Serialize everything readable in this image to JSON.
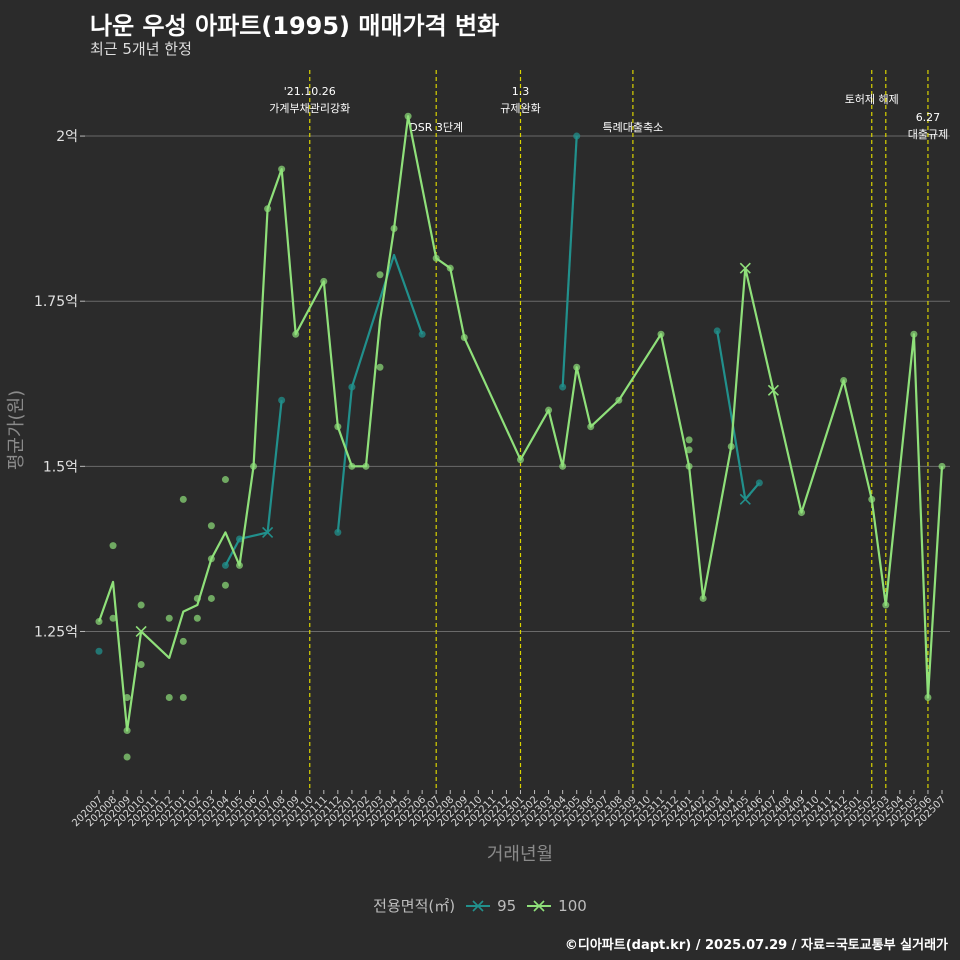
{
  "title": "나운 우성 아파트(1995) 매매가격 변화",
  "subtitle": "최근 5개년 한정",
  "caption": "©디아파트(dapt.kr) / 2025.07.29 / 자료=국토교통부 실거래가",
  "chart_data": {
    "type": "line",
    "xlabel": "거래년월",
    "ylabel": "평균가(원)",
    "ylim": [
      1.01,
      2.1
    ],
    "yticks": [
      {
        "v": 1.25,
        "label": "1.25억"
      },
      {
        "v": 1.5,
        "label": "1.5억"
      },
      {
        "v": 1.75,
        "label": "1.75억"
      },
      {
        "v": 2.0,
        "label": "2억"
      }
    ],
    "categories": [
      "202007",
      "202008",
      "202009",
      "202010",
      "202011",
      "202012",
      "202101",
      "202102",
      "202103",
      "202104",
      "202105",
      "202106",
      "202107",
      "202108",
      "202109",
      "202110",
      "202111",
      "202112",
      "202201",
      "202202",
      "202203",
      "202204",
      "202205",
      "202206",
      "202207",
      "202208",
      "202209",
      "202210",
      "202211",
      "202212",
      "202301",
      "202302",
      "202303",
      "202304",
      "202305",
      "202306",
      "202307",
      "202308",
      "202309",
      "202310",
      "202311",
      "202312",
      "202401",
      "202402",
      "202403",
      "202404",
      "202405",
      "202406",
      "202407",
      "202408",
      "202409",
      "202410",
      "202411",
      "202412",
      "202501",
      "202502",
      "202503",
      "202504",
      "202505",
      "202506",
      "202507"
    ],
    "legend_title": "전용면적(㎡)",
    "series": [
      {
        "name": "95",
        "color": "#21908c",
        "segments": [
          [
            [
              "202104",
              1.35
            ],
            [
              "202105",
              1.39
            ],
            [
              "202107",
              1.4
            ],
            [
              "202108",
              1.6
            ]
          ],
          [
            [
              "202112",
              1.4
            ],
            [
              "202201",
              1.62
            ],
            [
              "202204",
              1.82
            ],
            [
              "202206",
              1.7
            ]
          ],
          [
            [
              "202304",
              1.62
            ],
            [
              "202305",
              2.0
            ]
          ],
          [
            [
              "202403",
              1.705
            ],
            [
              "202405",
              1.45
            ],
            [
              "202406",
              1.475
            ]
          ]
        ],
        "points": [
          [
            "202007",
            1.22
          ],
          [
            "202104",
            1.35
          ],
          [
            "202105",
            1.39
          ],
          [
            "202108",
            1.6
          ],
          [
            "202112",
            1.4
          ],
          [
            "202201",
            1.62
          ],
          [
            "202206",
            1.7
          ],
          [
            "202304",
            1.62
          ],
          [
            "202305",
            2.0
          ],
          [
            "202403",
            1.705
          ],
          [
            "202406",
            1.475
          ]
        ],
        "crosses": [
          [
            "202107",
            1.4
          ],
          [
            "202405",
            1.45
          ]
        ]
      },
      {
        "name": "100",
        "color": "#8fe07a",
        "line": [
          [
            "202007",
            1.265
          ],
          [
            "202008",
            1.325
          ],
          [
            "202009",
            1.1
          ],
          [
            "202010",
            1.25
          ],
          [
            "202012",
            1.21
          ],
          [
            "202101",
            1.28
          ],
          [
            "202102",
            1.29
          ],
          [
            "202103",
            1.36
          ],
          [
            "202104",
            1.4
          ],
          [
            "202105",
            1.35
          ],
          [
            "202106",
            1.5
          ],
          [
            "202107",
            1.89
          ],
          [
            "202108",
            1.95
          ],
          [
            "202109",
            1.7
          ],
          [
            "202111",
            1.78
          ],
          [
            "202112",
            1.56
          ],
          [
            "202201",
            1.5
          ],
          [
            "202202",
            1.5
          ],
          [
            "202203",
            1.72
          ],
          [
            "202204",
            1.86
          ],
          [
            "202205",
            2.03
          ],
          [
            "202207",
            1.815
          ],
          [
            "202208",
            1.8
          ],
          [
            "202209",
            1.695
          ],
          [
            "202301",
            1.51
          ],
          [
            "202303",
            1.585
          ],
          [
            "202304",
            1.5
          ],
          [
            "202305",
            1.65
          ],
          [
            "202306",
            1.56
          ],
          [
            "202308",
            1.6
          ],
          [
            "202311",
            1.7
          ],
          [
            "202401",
            1.5
          ],
          [
            "202402",
            1.3
          ],
          [
            "202404",
            1.53
          ],
          [
            "202405",
            1.8
          ],
          [
            "202407",
            1.615
          ],
          [
            "202409",
            1.43
          ],
          [
            "202412",
            1.63
          ],
          [
            "202502",
            1.45
          ],
          [
            "202503",
            1.29
          ],
          [
            "202505",
            1.7
          ],
          [
            "202506",
            1.15
          ],
          [
            "202507",
            1.5
          ]
        ],
        "points": [
          [
            "202007",
            1.265
          ],
          [
            "202008",
            1.38
          ],
          [
            "202008",
            1.27
          ],
          [
            "202009",
            1.15
          ],
          [
            "202009",
            1.1
          ],
          [
            "202009",
            1.06
          ],
          [
            "202010",
            1.29
          ],
          [
            "202010",
            1.2
          ],
          [
            "202012",
            1.27
          ],
          [
            "202012",
            1.15
          ],
          [
            "202101",
            1.45
          ],
          [
            "202101",
            1.235
          ],
          [
            "202101",
            1.15
          ],
          [
            "202102",
            1.3
          ],
          [
            "202102",
            1.27
          ],
          [
            "202103",
            1.41
          ],
          [
            "202103",
            1.36
          ],
          [
            "202103",
            1.3
          ],
          [
            "202104",
            1.48
          ],
          [
            "202104",
            1.32
          ],
          [
            "202105",
            1.35
          ],
          [
            "202106",
            1.5
          ],
          [
            "202107",
            1.89
          ],
          [
            "202108",
            1.95
          ],
          [
            "202109",
            1.7
          ],
          [
            "202111",
            1.78
          ],
          [
            "202112",
            1.56
          ],
          [
            "202201",
            1.5
          ],
          [
            "202202",
            1.5
          ],
          [
            "202203",
            1.79
          ],
          [
            "202203",
            1.65
          ],
          [
            "202204",
            1.86
          ],
          [
            "202205",
            2.03
          ],
          [
            "202207",
            1.815
          ],
          [
            "202208",
            1.8
          ],
          [
            "202209",
            1.695
          ],
          [
            "202301",
            1.51
          ],
          [
            "202303",
            1.585
          ],
          [
            "202304",
            1.5
          ],
          [
            "202305",
            1.65
          ],
          [
            "202306",
            1.56
          ],
          [
            "202308",
            1.6
          ],
          [
            "202311",
            1.7
          ],
          [
            "202401",
            1.54
          ],
          [
            "202401",
            1.525
          ],
          [
            "202401",
            1.5
          ],
          [
            "202402",
            1.3
          ],
          [
            "202404",
            1.53
          ],
          [
            "202409",
            1.43
          ],
          [
            "202412",
            1.63
          ],
          [
            "202502",
            1.45
          ],
          [
            "202503",
            1.29
          ],
          [
            "202505",
            1.7
          ],
          [
            "202506",
            1.15
          ],
          [
            "202507",
            1.5
          ]
        ],
        "crosses": [
          [
            "202010",
            1.25
          ],
          [
            "202405",
            1.8
          ],
          [
            "202407",
            1.615
          ]
        ]
      }
    ],
    "events": [
      {
        "x": "202110",
        "text": [
          "'21.10.26",
          "가계부채관리강화"
        ],
        "level": "high"
      },
      {
        "x": "202207",
        "text": [
          "DSR 3단계"
        ],
        "level": "low"
      },
      {
        "x": "202301",
        "text": [
          "1.3",
          "규제완화"
        ],
        "level": "high"
      },
      {
        "x": "202309",
        "text": [
          "특례대출축소"
        ],
        "level": "low"
      },
      {
        "x": "202502",
        "text": [
          "토허제 해제"
        ],
        "level": "mid"
      },
      {
        "x": "202503",
        "text": [],
        "level": "mid"
      },
      {
        "x": "202506",
        "text": [
          "6.27",
          "대출규제"
        ],
        "level": "low2"
      }
    ]
  }
}
